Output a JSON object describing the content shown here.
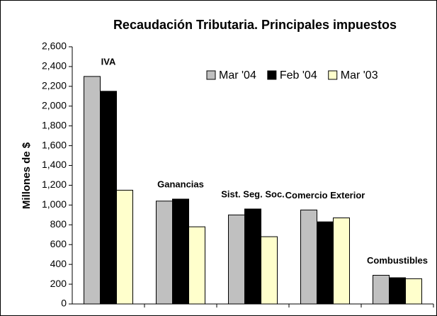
{
  "chart_data": {
    "type": "bar",
    "title": "Recaudación Tributaria. Principales impuestos",
    "y_label": "Millones de $",
    "categories": [
      "IVA",
      "Ganancias",
      "Sist. Seg. Soc.",
      "Comercio Exterior",
      "Combustibles"
    ],
    "series": [
      {
        "name": "Mar '04",
        "color": "#c0c0c0",
        "values": [
          2300,
          1040,
          900,
          950,
          290
        ]
      },
      {
        "name": "Feb '04",
        "color": "#000000",
        "values": [
          2150,
          1060,
          960,
          830,
          265
        ]
      },
      {
        "name": "Mar '03",
        "color": "#ffffcc",
        "values": [
          1150,
          780,
          680,
          870,
          255
        ]
      }
    ],
    "ylim": [
      0,
      2600
    ],
    "yticks": [
      0,
      200,
      400,
      600,
      800,
      {
        "value": 1000,
        "label": "1,000"
      },
      {
        "value": 1200,
        "label": "1,200"
      },
      {
        "value": 1400,
        "label": "1,400"
      },
      {
        "value": 1600,
        "label": "1,600"
      },
      {
        "value": 1800,
        "label": "1,800"
      },
      {
        "value": 2000,
        "label": "2,000"
      },
      {
        "value": 2200,
        "label": "2,200"
      },
      {
        "value": 2400,
        "label": "2,400"
      },
      {
        "value": 2600,
        "label": "2,600"
      }
    ],
    "legend": "upper right"
  }
}
